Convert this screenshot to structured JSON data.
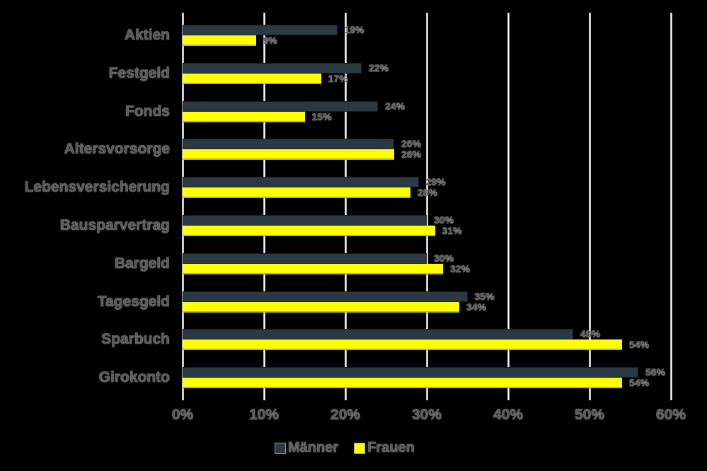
{
  "chart_data": {
    "type": "bar",
    "orientation": "horizontal",
    "title": "",
    "xlabel": "",
    "ylabel": "",
    "xlim": [
      0,
      60
    ],
    "x_ticks": [
      "0%",
      "10%",
      "20%",
      "30%",
      "40%",
      "50%",
      "60%"
    ],
    "grid": true,
    "legend_position": "bottom",
    "categories": [
      "Aktien",
      "Festgeld",
      "Fonds",
      "Altersvorsorge",
      "Lebensversicherung",
      "Bausparvertrag",
      "Bargeld",
      "Tagesgeld",
      "Sparbuch",
      "Girokonto"
    ],
    "series": [
      {
        "name": "Männer",
        "color": "#2b3a42",
        "values": [
          19,
          22,
          24,
          26,
          29,
          30,
          30,
          35,
          48,
          56
        ]
      },
      {
        "name": "Frauen",
        "color": "#ffff00",
        "values": [
          9,
          17,
          15,
          26,
          28,
          31,
          32,
          34,
          54,
          54
        ]
      }
    ]
  },
  "labels": {
    "categories": [
      "Aktien",
      "Festgeld",
      "Fonds",
      "Altersvorsorge",
      "Lebensversicherung",
      "Bausparvertrag",
      "Bargeld",
      "Tagesgeld",
      "Sparbuch",
      "Girokonto"
    ],
    "maenner": [
      "19%",
      "22%",
      "24%",
      "26%",
      "29%",
      "30%",
      "30%",
      "35%",
      "48%",
      "56%"
    ],
    "frauen": [
      "9%",
      "17%",
      "15%",
      "26%",
      "28%",
      "31%",
      "32%",
      "34%",
      "54%",
      "54%"
    ],
    "ticks": [
      "0%",
      "10%",
      "20%",
      "30%",
      "40%",
      "50%",
      "60%"
    ],
    "legend": [
      "Männer",
      "Frauen"
    ]
  }
}
